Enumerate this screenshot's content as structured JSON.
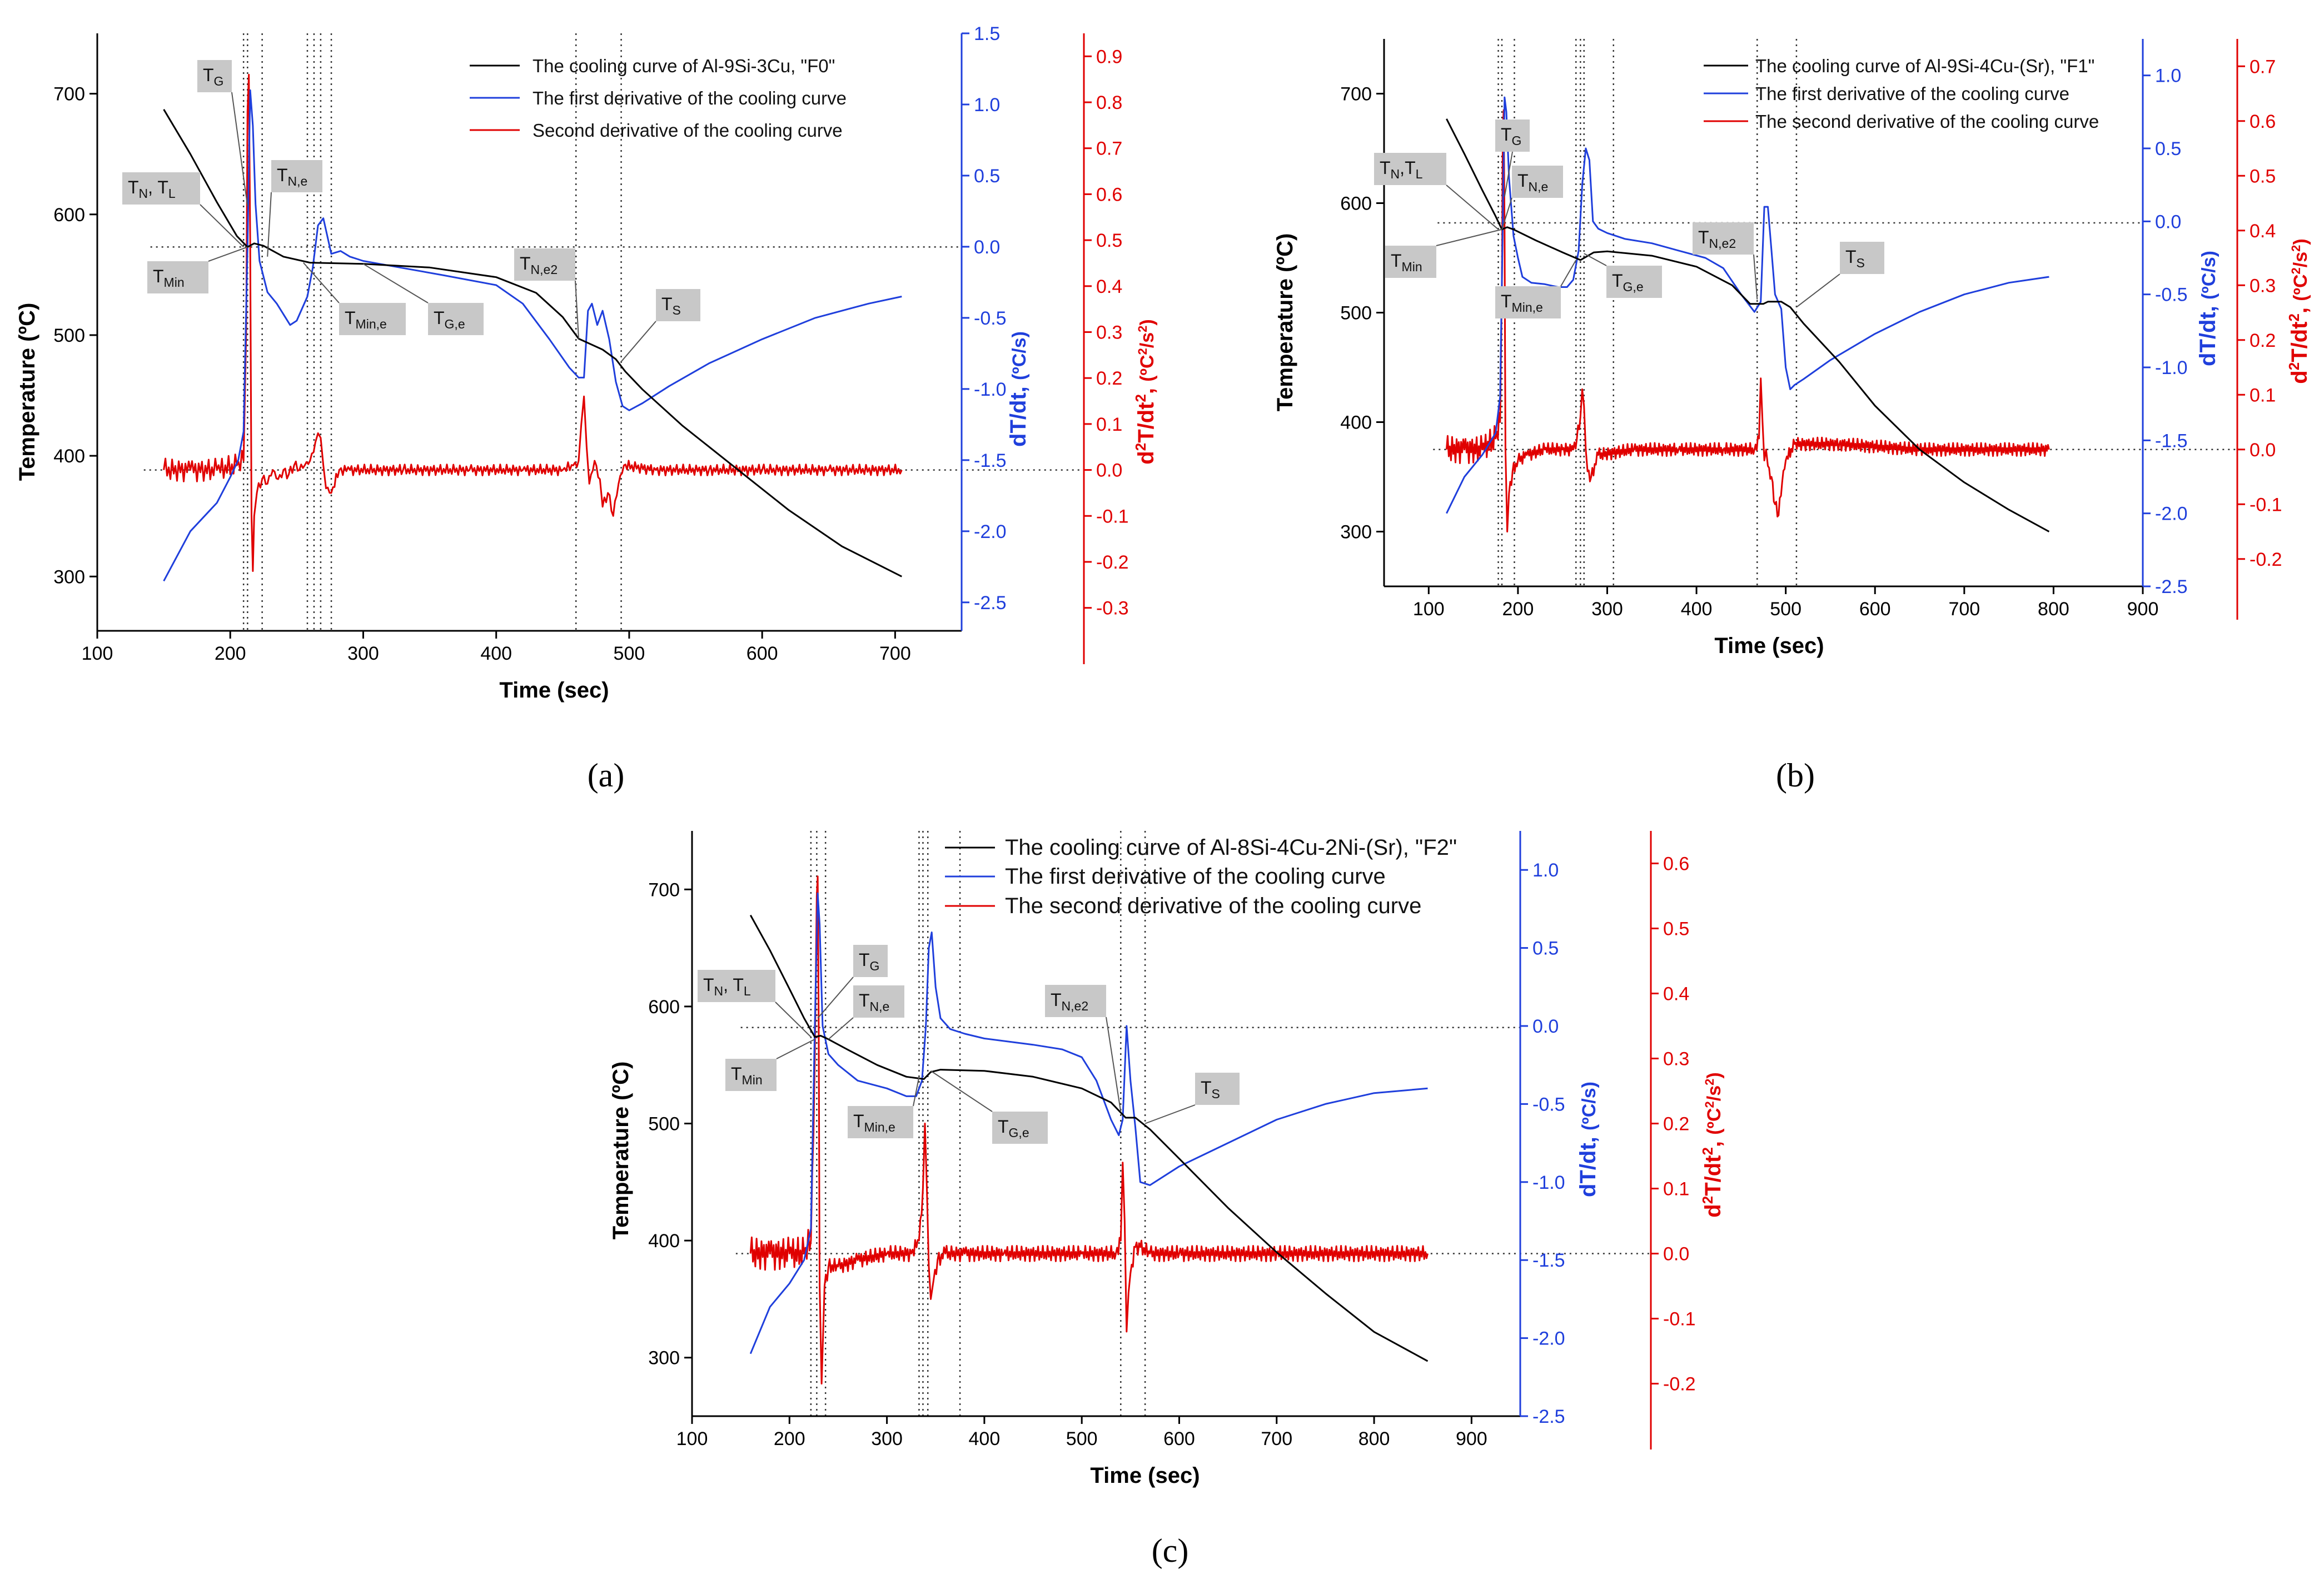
{
  "colors": {
    "cooling": "#000000",
    "first": "#1f3fdc",
    "second": "#e00000",
    "annotation_box": "#c8c8c8"
  },
  "chart_data": [
    {
      "id": "a",
      "type": "line",
      "caption": "(a)",
      "xlabel": "Time (sec)",
      "ylabel_left": "Temperature (ºC)",
      "ylabel_right1": "dT/dt, (ºC/s)",
      "ylabel_right2": "d²T/dt², (ºC²/s²)",
      "xlim": [
        100,
        750
      ],
      "xticks": [
        100,
        200,
        300,
        400,
        500,
        600,
        700
      ],
      "ylim_temp": [
        255,
        750
      ],
      "yticks_temp": [
        300,
        400,
        500,
        600,
        700
      ],
      "ylim_d1": [
        -2.7,
        1.5
      ],
      "yticks_d1": [
        1.5,
        1.0,
        0.5,
        0.0,
        -0.5,
        -1.0,
        -1.5,
        -2.0,
        -2.5
      ],
      "ylim_d2": [
        -0.35,
        0.95
      ],
      "yticks_d2": [
        0.9,
        0.8,
        0.7,
        0.6,
        0.5,
        0.4,
        0.3,
        0.2,
        0.1,
        0.0,
        -0.1,
        -0.2,
        -0.3
      ],
      "legend": [
        "The cooling curve of Al-9Si-3Cu, \"F0\"",
        "The first derivative of the cooling curve",
        "Second derivative of the cooling curve"
      ],
      "annotations": [
        {
          "label": "T",
          "sub": "G"
        },
        {
          "label": "T",
          "sub": "N",
          "label2": ", T",
          "sub2": "L"
        },
        {
          "label": "T",
          "sub": "Min"
        },
        {
          "label": "T",
          "sub": "N,e"
        },
        {
          "label": "T",
          "sub": "Min,e"
        },
        {
          "label": "T",
          "sub": "G,e"
        },
        {
          "label": "T",
          "sub": "N,e2"
        },
        {
          "label": "T",
          "sub": "S"
        }
      ],
      "reference_times": [
        210,
        213,
        224,
        258,
        263,
        268,
        276,
        460,
        494
      ],
      "cooling": {
        "x": [
          150,
          170,
          190,
          205,
          213,
          218,
          225,
          240,
          260,
          300,
          350,
          400,
          430,
          450,
          462,
          470,
          480,
          490,
          497,
          510,
          540,
          580,
          620,
          660,
          705
        ],
        "y": [
          687,
          650,
          610,
          582,
          573,
          576,
          574,
          565,
          560,
          559,
          556,
          548,
          535,
          515,
          497,
          493,
          488,
          480,
          470,
          455,
          425,
          390,
          355,
          325,
          300
        ]
      },
      "first_derivative": {
        "x": [
          150,
          170,
          190,
          200,
          206,
          210,
          213,
          215,
          217,
          219,
          222,
          228,
          235,
          245,
          250,
          258,
          262,
          266,
          270,
          276,
          283,
          290,
          300,
          330,
          360,
          400,
          420,
          440,
          455,
          462,
          466,
          469,
          472,
          476,
          480,
          485,
          490,
          495,
          500,
          510,
          530,
          560,
          600,
          640,
          680,
          705
        ],
        "y": [
          -2.35,
          -2.0,
          -1.8,
          -1.62,
          -1.5,
          -1.3,
          0.0,
          1.1,
          0.85,
          0.3,
          -0.1,
          -0.32,
          -0.4,
          -0.55,
          -0.52,
          -0.35,
          -0.15,
          0.15,
          0.2,
          -0.05,
          -0.03,
          -0.07,
          -0.1,
          -0.15,
          -0.2,
          -0.27,
          -0.4,
          -0.65,
          -0.85,
          -0.92,
          -0.92,
          -0.45,
          -0.4,
          -0.55,
          -0.45,
          -0.65,
          -0.95,
          -1.12,
          -1.15,
          -1.1,
          -0.98,
          -0.82,
          -0.65,
          -0.5,
          -0.4,
          -0.35
        ]
      },
      "second_derivative": {
        "x": [
          150,
          170,
          190,
          205,
          210,
          212,
          213,
          214,
          215,
          216,
          217,
          218,
          220,
          224,
          228,
          232,
          236,
          240,
          244,
          248,
          252,
          256,
          260,
          264,
          266,
          268,
          270,
          272,
          276,
          282,
          290,
          330,
          380,
          420,
          450,
          458,
          462,
          464,
          466,
          468,
          470,
          474,
          478,
          480,
          484,
          488,
          492,
          496,
          520,
          560,
          600,
          650,
          705
        ],
        "y": [
          0.0,
          0.0,
          0.0,
          0.01,
          0.02,
          0.3,
          0.78,
          0.86,
          0.5,
          -0.1,
          -0.22,
          -0.1,
          -0.05,
          -0.02,
          -0.03,
          0.0,
          -0.02,
          0.0,
          -0.01,
          0.01,
          0.0,
          0.01,
          0.02,
          0.06,
          0.08,
          0.07,
          0.01,
          -0.04,
          -0.05,
          0.0,
          0.0,
          0.0,
          0.0,
          0.0,
          0.0,
          0.01,
          0.02,
          0.1,
          0.16,
          0.05,
          -0.03,
          0.02,
          -0.02,
          -0.08,
          -0.05,
          -0.1,
          -0.03,
          0.01,
          0.0,
          0.0,
          0.0,
          0.0,
          0.0
        ]
      }
    },
    {
      "id": "b",
      "type": "line",
      "caption": "(b)",
      "xlabel": "Time (sec)",
      "ylabel_left": "Temperature (ºC)",
      "ylabel_right1": "dT/dt, (ºC/s)",
      "ylabel_right2": "d²T/dt², (ºC²/s²)",
      "xlim": [
        50,
        900
      ],
      "xticks": [
        100,
        200,
        300,
        400,
        500,
        600,
        700,
        800,
        900
      ],
      "ylim_temp": [
        250,
        750
      ],
      "yticks_temp": [
        300,
        400,
        500,
        600,
        700
      ],
      "ylim_d1": [
        -2.5,
        1.25
      ],
      "yticks_d1": [
        1.0,
        0.5,
        0.0,
        -0.5,
        -1.0,
        -1.5,
        -2.0,
        -2.5
      ],
      "ylim_d2": [
        -0.25,
        0.75
      ],
      "yticks_d2": [
        0.7,
        0.6,
        0.5,
        0.4,
        0.3,
        0.2,
        0.1,
        0.0,
        -0.1,
        -0.2
      ],
      "legend": [
        "The cooling curve of Al-9Si-4Cu-(Sr), \"F1\"",
        "The first derivative of the cooling curve",
        "The second derivative of the cooling curve"
      ],
      "annotations": [
        {
          "label": "T",
          "sub": "N",
          "label2": ",T",
          "sub2": "L"
        },
        {
          "label": "T",
          "sub": "G"
        },
        {
          "label": "T",
          "sub": "N,e"
        },
        {
          "label": "T",
          "sub": "Min"
        },
        {
          "label": "T",
          "sub": "Min,e"
        },
        {
          "label": "T",
          "sub": "G,e"
        },
        {
          "label": "T",
          "sub": "N,e2"
        },
        {
          "label": "T",
          "sub": "S"
        }
      ],
      "reference_times": [
        178,
        182,
        196,
        265,
        270,
        274,
        307,
        468,
        512
      ],
      "cooling": {
        "x": [
          120,
          140,
          160,
          175,
          182,
          188,
          195,
          220,
          250,
          270,
          285,
          300,
          350,
          400,
          440,
          460,
          475,
          480,
          495,
          505,
          520,
          560,
          600,
          650,
          700,
          750,
          795
        ],
        "y": [
          677,
          645,
          612,
          588,
          576,
          578,
          576,
          566,
          555,
          548,
          555,
          556,
          552,
          542,
          525,
          508,
          508,
          510,
          510,
          505,
          490,
          455,
          415,
          375,
          345,
          320,
          300
        ]
      },
      "first_derivative": {
        "x": [
          120,
          140,
          160,
          175,
          180,
          183,
          185,
          187,
          190,
          195,
          200,
          205,
          215,
          230,
          245,
          255,
          262,
          268,
          272,
          276,
          280,
          284,
          290,
          300,
          320,
          350,
          380,
          410,
          430,
          450,
          465,
          472,
          476,
          480,
          484,
          488,
          495,
          500,
          505,
          510,
          520,
          550,
          600,
          650,
          700,
          750,
          795
        ],
        "y": [
          -2.0,
          -1.75,
          -1.6,
          -1.45,
          -1.2,
          0.0,
          0.85,
          0.75,
          0.3,
          -0.1,
          -0.25,
          -0.38,
          -0.42,
          -0.43,
          -0.45,
          -0.45,
          -0.4,
          -0.2,
          0.25,
          0.5,
          0.42,
          0.0,
          -0.05,
          -0.08,
          -0.12,
          -0.15,
          -0.2,
          -0.25,
          -0.32,
          -0.5,
          -0.62,
          -0.55,
          0.1,
          0.1,
          -0.2,
          -0.5,
          -0.6,
          -1.0,
          -1.15,
          -1.12,
          -1.08,
          -0.95,
          -0.77,
          -0.62,
          -0.5,
          -0.42,
          -0.38
        ]
      },
      "second_derivative": {
        "x": [
          120,
          140,
          160,
          175,
          180,
          182,
          183,
          184,
          185,
          186,
          188,
          190,
          194,
          200,
          210,
          230,
          250,
          262,
          266,
          270,
          272,
          274,
          276,
          278,
          282,
          290,
          330,
          380,
          430,
          465,
          470,
          472,
          474,
          476,
          478,
          480,
          484,
          488,
          492,
          496,
          500,
          510,
          560,
          650,
          795
        ],
        "y": [
          0.0,
          0.0,
          0.0,
          0.02,
          0.05,
          0.3,
          0.58,
          0.62,
          0.4,
          0.0,
          -0.15,
          -0.08,
          -0.04,
          -0.02,
          -0.01,
          0.0,
          0.0,
          0.0,
          0.02,
          0.06,
          0.11,
          0.08,
          0.0,
          -0.04,
          -0.05,
          -0.01,
          0.0,
          0.0,
          0.0,
          0.0,
          0.02,
          0.13,
          0.05,
          -0.02,
          0.0,
          -0.03,
          -0.05,
          -0.1,
          -0.12,
          -0.06,
          -0.02,
          0.01,
          0.01,
          0.0,
          0.0
        ]
      }
    },
    {
      "id": "c",
      "type": "line",
      "caption": "(c)",
      "xlabel": "Time (sec)",
      "ylabel_left": "Temperature (ºC)",
      "ylabel_right1": "dT/dt, (ºC/s)",
      "ylabel_right2": "d²T/dt², (ºC²/s²)",
      "xlim": [
        100,
        950
      ],
      "xticks": [
        100,
        200,
        300,
        400,
        500,
        600,
        700,
        800,
        900
      ],
      "ylim_temp": [
        250,
        750
      ],
      "yticks_temp": [
        300,
        400,
        500,
        600,
        700
      ],
      "ylim_d1": [
        -2.5,
        1.25
      ],
      "yticks_d1": [
        1.0,
        0.5,
        0.0,
        -0.5,
        -1.0,
        -1.5,
        -2.0,
        -2.5
      ],
      "ylim_d2": [
        -0.25,
        0.65
      ],
      "yticks_d2": [
        0.6,
        0.5,
        0.4,
        0.3,
        0.2,
        0.1,
        0.0,
        -0.1,
        -0.2
      ],
      "legend": [
        "The cooling curve of Al-8Si-4Cu-2Ni-(Sr), \"F2\"",
        "The first derivative of the cooling curve",
        "The second derivative of the cooling curve"
      ],
      "annotations": [
        {
          "label": "T",
          "sub": "N",
          "label2": ", T",
          "sub2": "L"
        },
        {
          "label": "T",
          "sub": "G"
        },
        {
          "label": "T",
          "sub": "N,e"
        },
        {
          "label": "T",
          "sub": "Min"
        },
        {
          "label": "T",
          "sub": "Min,e"
        },
        {
          "label": "T",
          "sub": "G,e"
        },
        {
          "label": "T",
          "sub": "N,e2"
        },
        {
          "label": "T",
          "sub": "S"
        }
      ],
      "reference_times": [
        222,
        228,
        237,
        333,
        337,
        342,
        375,
        540,
        565
      ],
      "cooling": {
        "x": [
          160,
          180,
          200,
          215,
          226,
          232,
          240,
          260,
          290,
          320,
          338,
          345,
          355,
          400,
          450,
          500,
          530,
          545,
          555,
          570,
          600,
          650,
          700,
          750,
          800,
          855
        ],
        "y": [
          678,
          648,
          615,
          590,
          574,
          575,
          572,
          563,
          550,
          540,
          538,
          544,
          546,
          545,
          540,
          530,
          518,
          505,
          505,
          495,
          470,
          428,
          390,
          355,
          322,
          297
        ]
      },
      "first_derivative": {
        "x": [
          160,
          180,
          200,
          215,
          222,
          226,
          229,
          231,
          234,
          240,
          250,
          270,
          300,
          320,
          330,
          336,
          340,
          343,
          346,
          350,
          355,
          365,
          380,
          400,
          450,
          480,
          500,
          515,
          530,
          538,
          542,
          546,
          550,
          555,
          560,
          570,
          600,
          650,
          700,
          750,
          800,
          855
        ],
        "y": [
          -2.1,
          -1.8,
          -1.65,
          -1.5,
          -1.3,
          0.0,
          0.85,
          0.65,
          0.0,
          -0.18,
          -0.25,
          -0.35,
          -0.4,
          -0.45,
          -0.45,
          -0.35,
          0.0,
          0.5,
          0.6,
          0.25,
          0.05,
          -0.02,
          -0.05,
          -0.08,
          -0.12,
          -0.15,
          -0.2,
          -0.35,
          -0.6,
          -0.7,
          -0.6,
          0.0,
          -0.35,
          -0.65,
          -1.0,
          -1.02,
          -0.9,
          -0.75,
          -0.6,
          -0.5,
          -0.43,
          -0.4
        ]
      },
      "second_derivative": {
        "x": [
          160,
          180,
          200,
          215,
          222,
          226,
          228,
          229,
          230,
          231,
          233,
          236,
          240,
          250,
          270,
          300,
          325,
          333,
          337,
          339,
          341,
          343,
          345,
          348,
          352,
          360,
          380,
          420,
          500,
          535,
          540,
          542,
          544,
          546,
          548,
          550,
          555,
          560,
          570,
          600,
          700,
          855
        ],
        "y": [
          0.0,
          0.0,
          0.0,
          0.0,
          0.02,
          0.3,
          0.55,
          0.58,
          0.35,
          -0.05,
          -0.2,
          -0.05,
          -0.02,
          -0.02,
          -0.01,
          0.0,
          0.0,
          0.02,
          0.1,
          0.2,
          0.1,
          -0.02,
          -0.07,
          -0.04,
          -0.01,
          0.0,
          0.0,
          0.0,
          0.0,
          0.0,
          0.02,
          0.14,
          0.05,
          -0.12,
          -0.06,
          -0.03,
          0.01,
          0.01,
          0.0,
          0.0,
          0.0,
          0.0
        ]
      }
    }
  ]
}
